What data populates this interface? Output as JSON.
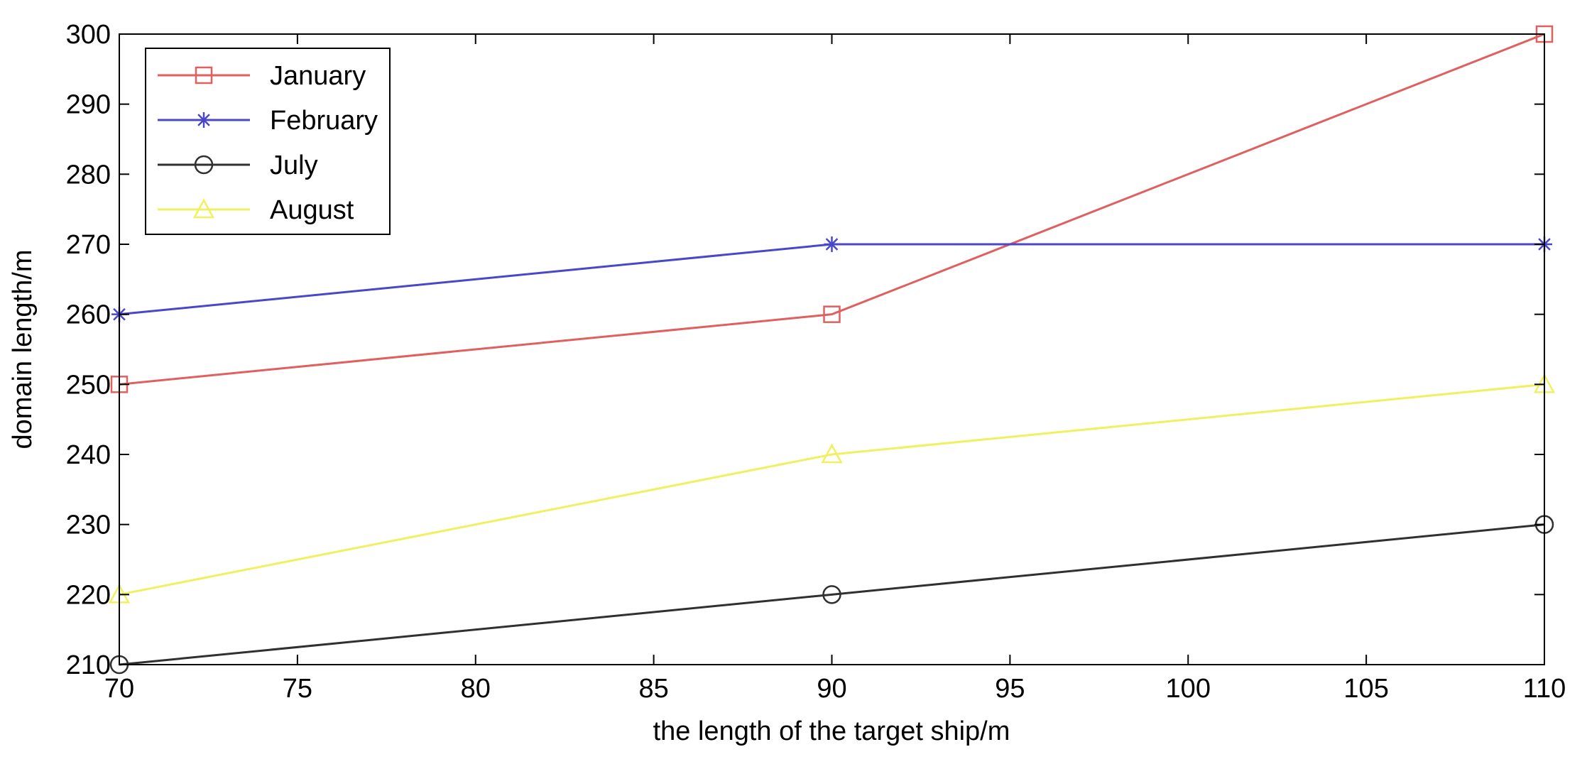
{
  "chart_data": {
    "type": "line",
    "title": "",
    "xlabel": "the length of the target ship/m",
    "ylabel": "domain length/m",
    "xlim": [
      70,
      110
    ],
    "ylim": [
      210,
      300
    ],
    "xticks": [
      70,
      75,
      80,
      85,
      90,
      95,
      100,
      105,
      110
    ],
    "yticks": [
      210,
      220,
      230,
      240,
      250,
      260,
      270,
      280,
      290,
      300
    ],
    "x": [
      70,
      90,
      110
    ],
    "grid": false,
    "legend_position": "top-left",
    "series": [
      {
        "name": "January",
        "values": [
          250,
          260,
          300
        ],
        "color": "#e06060",
        "marker": "square"
      },
      {
        "name": "February",
        "values": [
          260,
          270,
          270
        ],
        "color": "#4848c8",
        "marker": "asterisk"
      },
      {
        "name": "July",
        "values": [
          210,
          220,
          230
        ],
        "color": "#303030",
        "marker": "circle"
      },
      {
        "name": "August",
        "values": [
          220,
          240,
          250
        ],
        "color": "#f0f060",
        "marker": "triangle"
      }
    ]
  }
}
